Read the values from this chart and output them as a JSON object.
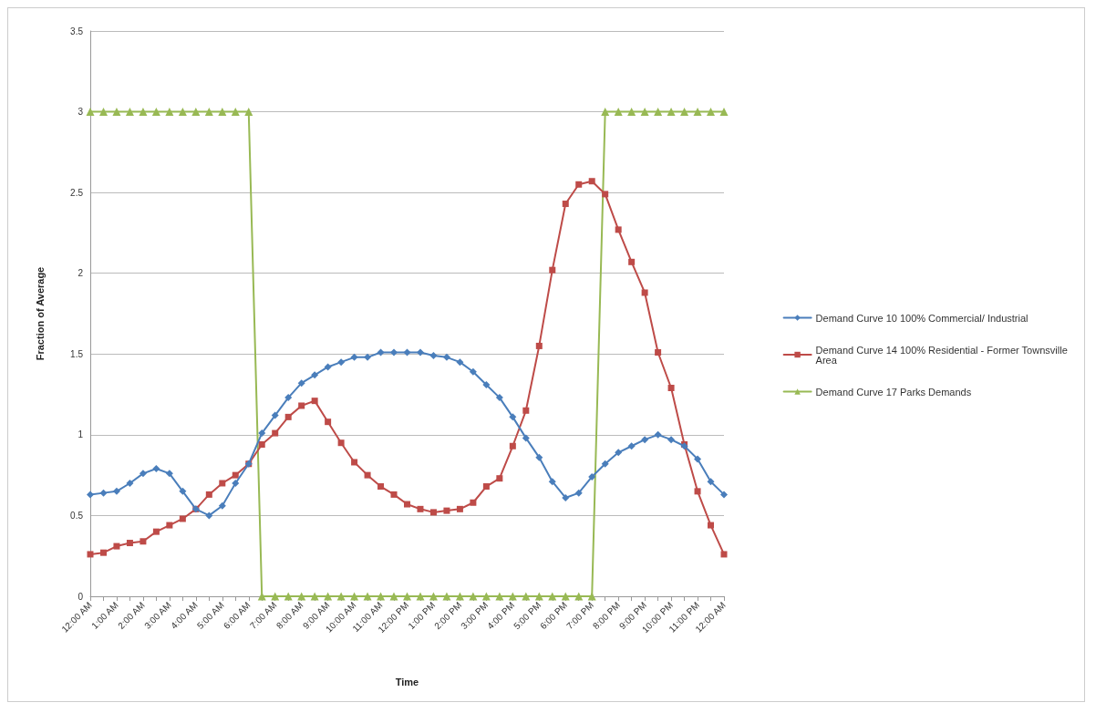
{
  "chart_data": {
    "type": "line",
    "xlabel": "Time",
    "ylabel": "Fraction of Average",
    "categories": [
      "12:00 AM",
      null,
      "1:00 AM",
      null,
      "2:00 AM",
      null,
      "3:00 AM",
      null,
      "4:00 AM",
      null,
      "5:00 AM",
      null,
      "6:00 AM",
      null,
      "7:00 AM",
      null,
      "8:00 AM",
      null,
      "9:00 AM",
      null,
      "10:00 AM",
      null,
      "11:00 AM",
      null,
      "12:00 PM",
      null,
      "1:00 PM",
      null,
      "2:00 PM",
      null,
      "3:00 PM",
      null,
      "4:00 PM",
      null,
      "5:00 PM",
      null,
      "6:00 PM",
      null,
      "7:00 PM",
      null,
      "8:00 PM",
      null,
      "9:00 PM",
      null,
      "10:00 PM",
      null,
      "11:00 PM",
      null,
      "12:00 AM"
    ],
    "series": [
      {
        "name": "Demand Curve 10 100% Commercial/ Industrial",
        "color": "#4a7ebb",
        "marker": "diamond",
        "values": [
          0.63,
          0.64,
          0.65,
          0.7,
          0.76,
          0.79,
          0.76,
          0.65,
          0.54,
          0.5,
          0.56,
          0.7,
          0.82,
          1.01,
          1.12,
          1.23,
          1.32,
          1.37,
          1.42,
          1.45,
          1.48,
          1.48,
          1.51,
          1.51,
          1.51,
          1.51,
          1.49,
          1.48,
          1.45,
          1.39,
          1.31,
          1.23,
          1.11,
          0.98,
          0.86,
          0.71,
          0.61,
          0.64,
          0.74,
          0.82,
          0.89,
          0.93,
          0.97,
          1.0,
          0.97,
          0.93,
          0.85,
          0.71,
          0.63
        ]
      },
      {
        "name": "Demand Curve 14 100% Residential - Former Townsville Area",
        "color": "#be4b48",
        "marker": "square",
        "values": [
          0.26,
          0.27,
          0.31,
          0.33,
          0.34,
          0.4,
          0.44,
          0.48,
          0.54,
          0.63,
          0.7,
          0.75,
          0.82,
          0.94,
          1.01,
          1.11,
          1.18,
          1.21,
          1.08,
          0.95,
          0.83,
          0.75,
          0.68,
          0.63,
          0.57,
          0.54,
          0.52,
          0.53,
          0.54,
          0.58,
          0.68,
          0.73,
          0.93,
          1.15,
          1.55,
          2.02,
          2.43,
          2.55,
          2.57,
          2.49,
          2.27,
          2.07,
          1.88,
          1.51,
          1.29,
          0.94,
          0.65,
          0.44,
          0.26
        ]
      },
      {
        "name": "Demand Curve 17 Parks Demands",
        "color": "#98b954",
        "marker": "triangle",
        "values": [
          3,
          3,
          3,
          3,
          3,
          3,
          3,
          3,
          3,
          3,
          3,
          3,
          3,
          0,
          0,
          0,
          0,
          0,
          0,
          0,
          0,
          0,
          0,
          0,
          0,
          0,
          0,
          0,
          0,
          0,
          0,
          0,
          0,
          0,
          0,
          0,
          0,
          0,
          0,
          3,
          3,
          3,
          3,
          3,
          3,
          3,
          3,
          3,
          3
        ]
      }
    ],
    "ylim": [
      0,
      3.5
    ],
    "yticks": [
      0,
      0.5,
      1,
      1.5,
      2,
      2.5,
      3,
      3.5
    ],
    "grid": "y",
    "legend": "right",
    "line_style": "solid"
  }
}
